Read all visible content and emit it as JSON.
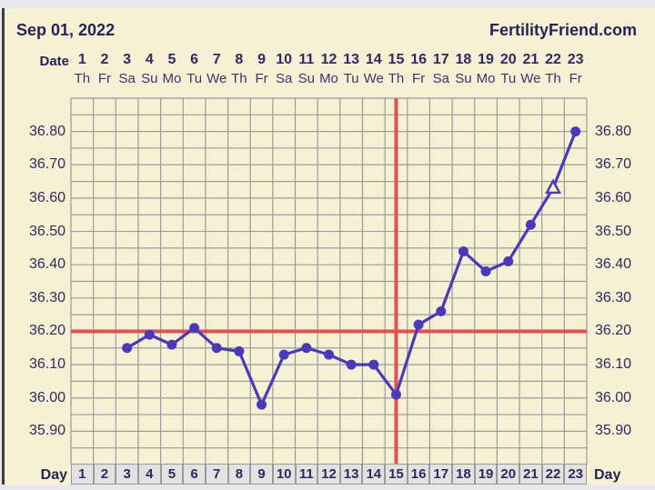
{
  "header": {
    "date_label": "Sep 01, 2022",
    "site_label": "FertilityFriend.com"
  },
  "date_row_label": "Date",
  "day_row": {
    "label_left": "Day",
    "label_right": "Day"
  },
  "chart_data": {
    "type": "line",
    "title": "Basal body temperature chart",
    "x_label": "Day",
    "x_days": [
      1,
      2,
      3,
      4,
      5,
      6,
      7,
      8,
      9,
      10,
      11,
      12,
      13,
      14,
      15,
      16,
      17,
      18,
      19,
      20,
      21,
      22,
      23
    ],
    "weekdays": [
      "Th",
      "Fr",
      "Sa",
      "Su",
      "Mo",
      "Tu",
      "We",
      "Th",
      "Fr",
      "Sa",
      "Su",
      "Mo",
      "Tu",
      "We",
      "Th",
      "Fr",
      "Sa",
      "Su",
      "Mo",
      "Tu",
      "We",
      "Th",
      "Fr"
    ],
    "series": [
      {
        "name": "temperature_celsius",
        "points": [
          [
            3,
            36.15
          ],
          [
            4,
            36.19
          ],
          [
            5,
            36.16
          ],
          [
            6,
            36.21
          ],
          [
            7,
            36.15
          ],
          [
            8,
            36.14
          ],
          [
            9,
            35.98
          ],
          [
            10,
            36.13
          ],
          [
            11,
            36.15
          ],
          [
            12,
            36.13
          ],
          [
            13,
            36.1
          ],
          [
            14,
            36.1
          ],
          [
            15,
            36.01
          ],
          [
            16,
            36.22
          ],
          [
            17,
            36.26
          ],
          [
            18,
            36.44
          ],
          [
            19,
            36.38
          ],
          [
            20,
            36.41
          ],
          [
            21,
            36.52
          ],
          [
            22,
            36.63
          ],
          [
            23,
            36.8
          ]
        ]
      }
    ],
    "open_triangle_marker_day": 22,
    "coverline_temp": 36.2,
    "vertical_line_day": 15,
    "y_ticks": [
      36.8,
      36.7,
      36.6,
      36.5,
      36.4,
      36.3,
      36.2,
      36.1,
      36.0,
      35.9
    ],
    "ylim": [
      35.8,
      36.9
    ],
    "grid": true,
    "legend_position": "none"
  },
  "colors": {
    "background_cream": "#f6f1d4",
    "grid_line": "#9b9b9b",
    "temp_line_blue": "#4a3ab8",
    "red_line": "#e05151",
    "text_navy": "#2e2a5e",
    "day_cell_bg": "#e2e2e2"
  }
}
